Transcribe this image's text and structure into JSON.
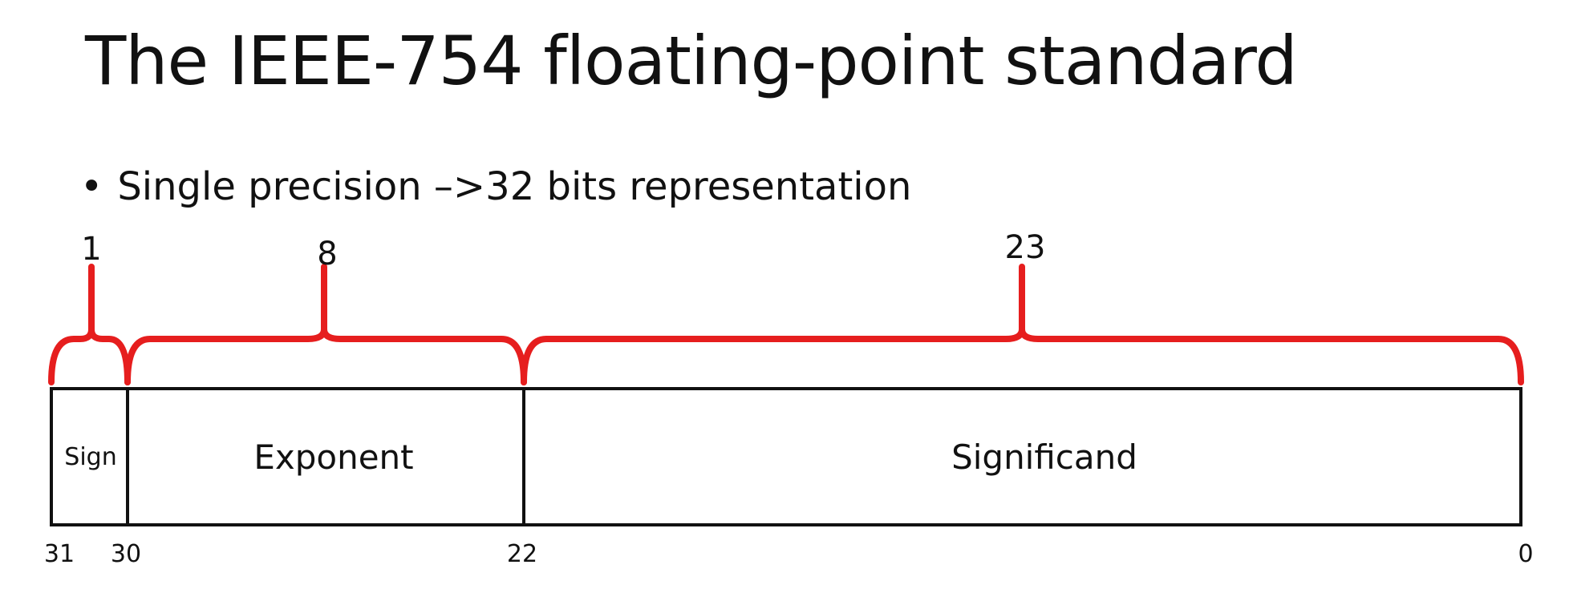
{
  "title": "The IEEE-754 floating-point standard",
  "bullet": {
    "symbol": "•",
    "text": "Single precision –>32 bits representation"
  },
  "colors": {
    "brace": "#e61e1e",
    "box_stroke": "#111111",
    "text": "#111111"
  },
  "fields": [
    {
      "name": "Sign",
      "width_bits": "1",
      "start_bit": "31"
    },
    {
      "name": "Exponent",
      "width_bits": "8",
      "start_bit": "30"
    },
    {
      "name": "Significand",
      "width_bits": "23",
      "start_bit": "22"
    }
  ],
  "end_bit": "0"
}
